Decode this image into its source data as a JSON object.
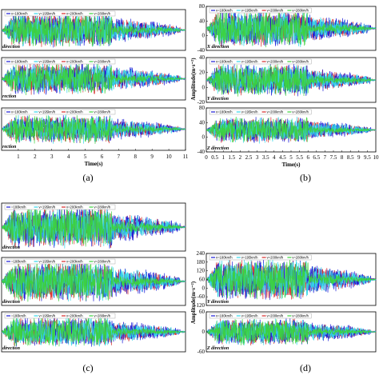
{
  "chart_data": [
    {
      "type": "line",
      "panel": "(a)",
      "xlabel": "Time(s)",
      "ylabel": "",
      "xlim": [
        0,
        11
      ],
      "xticks": [
        1,
        2,
        3,
        4,
        5,
        6,
        7,
        8,
        9,
        10,
        11
      ],
      "legend": [
        "v=180km/h",
        "v=195km/h",
        "v=200km/h",
        "v=280km/h"
      ],
      "series_colors": [
        "#1b1bd6",
        "#34d6e8",
        "#d62a2a",
        "#3cd23c"
      ],
      "subplots": [
        {
          "direction": "direction",
          "yticks": [],
          "amplitude": 1.0,
          "end_time": 11
        },
        {
          "direction": "rection",
          "yticks": [],
          "amplitude": 0.9,
          "end_time": 11
        },
        {
          "direction": "rection",
          "yticks": [],
          "amplitude": 0.8,
          "end_time": 11
        }
      ]
    },
    {
      "type": "line",
      "panel": "(b)",
      "xlabel": "Time(s)",
      "ylabel": "Amplitude(m·s⁻²)",
      "xlim": [
        0,
        10
      ],
      "xticks": [
        0,
        0.5,
        1,
        1.5,
        2,
        2.5,
        3,
        3.5,
        4,
        4.5,
        5,
        5.5,
        6,
        6.5,
        7,
        7.5,
        8,
        8.5,
        9,
        9.5,
        10
      ],
      "xticklabels": [
        "0",
        "0.5",
        "1",
        "1.5",
        "2",
        "2.5",
        "3",
        "3.5",
        "4",
        "4.5",
        "5",
        "5.5",
        "6",
        "6.5",
        "7",
        "7.5",
        "8",
        "8.5",
        "9",
        "9.5",
        "10"
      ],
      "legend": [
        "v=180km/h",
        "v=195km/h",
        "v=200km/h",
        "v=280km/h"
      ],
      "series_colors": [
        "#1b1bd6",
        "#34d6e8",
        "#d62a2a",
        "#3cd23c"
      ],
      "subplots": [
        {
          "direction": "X direction",
          "ylim": [
            -40,
            80
          ],
          "yticks": [
            80,
            40,
            0,
            -40
          ],
          "amplitude": 1.0,
          "end_time": 10
        },
        {
          "direction": "Y direction",
          "ylim": [
            -20,
            40
          ],
          "yticks": [
            40,
            20,
            0,
            -20
          ],
          "amplitude": 0.85,
          "end_time": 10
        },
        {
          "direction": "Z direction",
          "ylim": [
            -40,
            80
          ],
          "yticks": [
            80,
            40,
            0,
            -40
          ],
          "amplitude": 0.7,
          "end_time": 10
        }
      ]
    },
    {
      "type": "line",
      "panel": "(c)",
      "xlabel": "",
      "ylabel": "",
      "xlim": [
        0,
        11
      ],
      "xticks": [],
      "legend": [
        "=180km/h",
        "v=195km/h",
        "v=200km/h",
        "v=280km/h"
      ],
      "series_colors": [
        "#1b1bd6",
        "#34d6e8",
        "#d62a2a",
        "#3cd23c"
      ],
      "subplots": [
        {
          "direction": "direction",
          "yticks": [],
          "amplitude": 1.0,
          "end_time": 11
        },
        {
          "direction": "direction",
          "yticks": [],
          "amplitude": 1.0,
          "end_time": 11
        },
        {
          "direction": "direction",
          "yticks": [],
          "amplitude": 0.9,
          "end_time": 11
        }
      ]
    },
    {
      "type": "line",
      "panel": "(d)",
      "xlabel": "",
      "ylabel": "Amplitude(m·s⁻²)",
      "xlim": [
        0,
        10
      ],
      "xticks": [],
      "legend": [
        "v=180km/h",
        "v=195km/h",
        "v=200km/h",
        "v=280km/h"
      ],
      "series_colors": [
        "#1b1bd6",
        "#34d6e8",
        "#d62a2a",
        "#3cd23c"
      ],
      "subplots": [
        {
          "direction": "Y direction",
          "ylim": [
            -120,
            240
          ],
          "yticks": [
            240,
            180,
            120,
            60,
            0,
            -60,
            -120
          ],
          "amplitude": 0.9,
          "end_time": 10
        },
        {
          "direction": "Z direction",
          "ylim": [
            -60,
            60
          ],
          "yticks": [
            60,
            0,
            -60
          ],
          "amplitude": 0.8,
          "end_time": 10
        }
      ]
    }
  ]
}
